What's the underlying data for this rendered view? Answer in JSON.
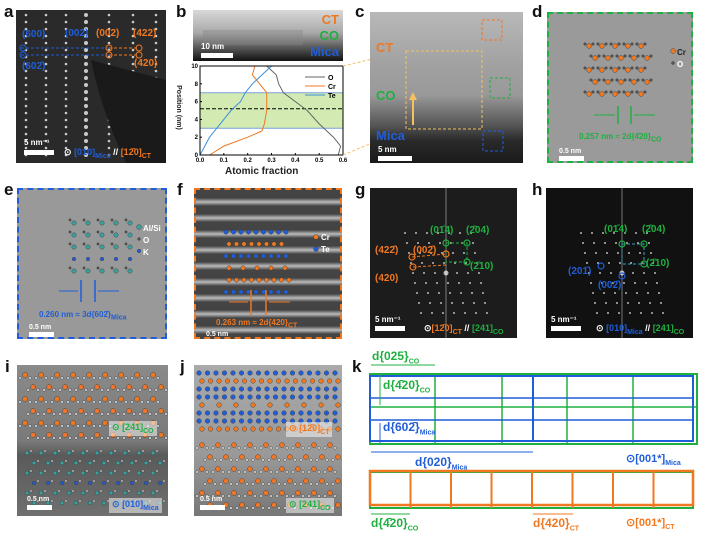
{
  "panel_labels": [
    "a",
    "b",
    "c",
    "d",
    "e",
    "f",
    "g",
    "h",
    "i",
    "j",
    "k"
  ],
  "colors": {
    "ct": "#f07820",
    "co": "#1fb040",
    "mica": "#1f5ed8",
    "o_line": "#666666",
    "band": "#c8e6a0"
  },
  "a": {
    "spots": [
      "(600)",
      "(602̄)",
      "(002)",
      "(002)",
      "(422)",
      "(420)"
    ],
    "scale": "5 nm⁻¹",
    "zone_mica": "[010]",
    "zone_mica_sub": "Mica",
    "sep": "//",
    "zone_ct": "[12̄0]",
    "zone_ct_sub": "CT"
  },
  "b": {
    "layers": [
      "CT",
      "CO",
      "Mica"
    ],
    "scale": "10 nm",
    "chart_data": {
      "type": "line",
      "xlabel": "Atomic fraction",
      "ylabel": "Position (nm)",
      "xlim": [
        0,
        0.6
      ],
      "ylim": [
        0,
        10
      ],
      "xticks": [
        "0.0",
        "0.1",
        "0.2",
        "0.3",
        "0.4",
        "0.5",
        "0.6"
      ],
      "yticks": [
        "0",
        "2",
        "4",
        "6",
        "8",
        "10"
      ],
      "legend_position": "top-right",
      "shaded_band": [
        3,
        7
      ],
      "dashed_line": 5.2,
      "series": [
        {
          "name": "O",
          "color": "#666666",
          "points": [
            [
              0.58,
              0
            ],
            [
              0.59,
              1
            ],
            [
              0.56,
              2
            ],
            [
              0.5,
              3.5
            ],
            [
              0.45,
              5
            ],
            [
              0.4,
              6
            ],
            [
              0.35,
              7
            ],
            [
              0.33,
              8
            ],
            [
              0.32,
              9
            ],
            [
              0.3,
              9.5
            ],
            [
              0.28,
              10
            ]
          ]
        },
        {
          "name": "Cr",
          "color": "#f07820",
          "points": [
            [
              0.04,
              0
            ],
            [
              0.1,
              1
            ],
            [
              0.2,
              2
            ],
            [
              0.26,
              2.7
            ],
            [
              0.27,
              3.5
            ],
            [
              0.28,
              5
            ],
            [
              0.28,
              6
            ],
            [
              0.28,
              7
            ],
            [
              0.25,
              8
            ],
            [
              0.22,
              9
            ],
            [
              0.23,
              10
            ]
          ]
        },
        {
          "name": "Te",
          "color": "#3a8fd8",
          "points": [
            [
              0,
              0
            ],
            [
              0.02,
              1
            ],
            [
              0.04,
              2
            ],
            [
              0.07,
              3
            ],
            [
              0.1,
              4
            ],
            [
              0.13,
              5
            ],
            [
              0.17,
              6
            ],
            [
              0.19,
              7
            ],
            [
              0.22,
              8
            ],
            [
              0.26,
              9
            ],
            [
              0.3,
              10
            ]
          ]
        }
      ]
    }
  },
  "c": {
    "layers": [
      "CT",
      "CO",
      "Mica"
    ],
    "scale": "5 nm"
  },
  "d": {
    "legend": [
      "Cr",
      "O"
    ],
    "spacing": "0.257 nm ≈ 2d{4̄20}",
    "spacing_sub": "CO",
    "scale": "0.5 nm"
  },
  "e": {
    "legend": [
      "Al/Si",
      "O",
      "K"
    ],
    "spacing": "0.260 nm ≈ 3d{602̄}",
    "spacing_sub": "Mica",
    "scale": "0.5 nm"
  },
  "f": {
    "legend": [
      "Cr",
      "Te"
    ],
    "spacing": "0.263 nm ≈ 2d{420}",
    "spacing_sub": "CT",
    "scale": "0.5 nm"
  },
  "g": {
    "spots": [
      "(01̄4)",
      "(2̄04)",
      "(422̄)",
      "(002̄)",
      "(2̄10)",
      "(420)"
    ],
    "scale": "5 nm⁻¹",
    "zone_ct": "[12̄0]",
    "zone_ct_sub": "CT",
    "sep": "//",
    "zone_co": "[241]",
    "zone_co_sub": "CO"
  },
  "h": {
    "spots": [
      "(01̄4)",
      "(2̄04)",
      "(201̄)",
      "(2̄10)",
      "(002̄)"
    ],
    "scale": "5 nm⁻¹",
    "zone_mica": "[010]",
    "zone_mica_sub": "Mica",
    "sep": "//",
    "zone_co": "[241]",
    "zone_co_sub": "CO"
  },
  "i": {
    "zone_co": "[241]",
    "zone_co_sub": "CO",
    "zone_mica": "[010]",
    "zone_mica_sub": "Mica",
    "scale": "0.5 nm"
  },
  "j": {
    "zone_ct": "[12̄0]",
    "zone_ct_sub": "CT",
    "zone_co": "[241]",
    "zone_co_sub": "CO",
    "scale": "0.5 nm"
  },
  "k": {
    "d025": "d{025}",
    "d025_sub": "CO",
    "d420co": "d{4̄20}",
    "d420co_sub": "CO",
    "d602": "d{602̄}",
    "d602_sub": "Mica",
    "d020": "d{020}",
    "d020_sub": "Mica",
    "zone_mica": "[001*]",
    "zone_mica_sub": "Mica",
    "d420co_b": "d{4̄20}",
    "d420co_b_sub": "CO",
    "d420ct": "d{420}",
    "d420ct_sub": "CT",
    "zone_ct": "[001*]",
    "zone_ct_sub": "CT"
  }
}
